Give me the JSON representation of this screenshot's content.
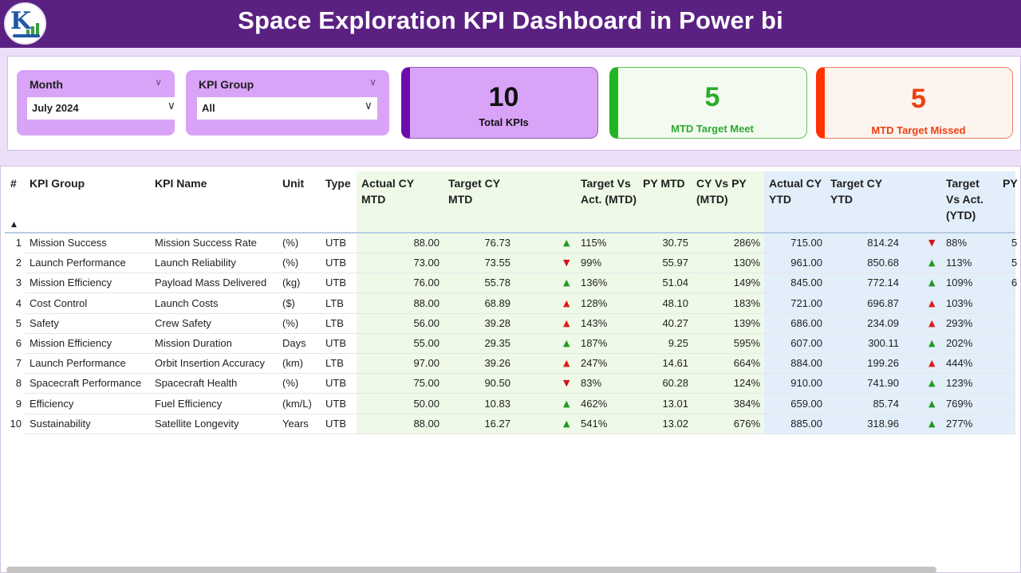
{
  "header": {
    "title": "Space Exploration KPI Dashboard in Power bi"
  },
  "slicers": {
    "month": {
      "label": "Month",
      "value": "July 2024"
    },
    "kpi_group": {
      "label": "KPI Group",
      "value": "All"
    }
  },
  "cards": {
    "total": {
      "value": "10",
      "caption": "Total KPIs"
    },
    "meet": {
      "value": "5",
      "caption": "MTD Target Meet"
    },
    "missed": {
      "value": "5",
      "caption": "MTD Target Missed"
    }
  },
  "colors": {
    "header": "#5b2182",
    "meet": "#22b422",
    "missed": "#ff3300",
    "mtd_bg": "#eef9e7",
    "ytd_bg": "#e2eefa"
  },
  "table": {
    "headers": {
      "num": "#",
      "group": "KPI Group",
      "name": "KPI Name",
      "unit": "Unit",
      "type": "Type",
      "actual_mtd": "Actual CY MTD",
      "target_mtd": "Target CY MTD",
      "tva_mtd": "Target Vs Act. (MTD)",
      "py_mtd": "PY MTD",
      "cy_vs_py": "CY Vs PY (MTD)",
      "actual_ytd": "Actual CY YTD",
      "target_ytd": "Target CY YTD",
      "tva_ytd": "Target Vs Act. (YTD)",
      "py": "PY"
    },
    "rows": [
      {
        "n": "1",
        "group": "Mission Success",
        "name": "Mission Success Rate",
        "unit": "(%)",
        "type": "UTB",
        "am": "88.00",
        "tm": "76.73",
        "mi": "up",
        "tvm": "115%",
        "pym": "30.75",
        "cvp": "286%",
        "ay": "715.00",
        "ty": "814.24",
        "yi": "down",
        "tvy": "88%",
        "py": "5"
      },
      {
        "n": "2",
        "group": "Launch Performance",
        "name": "Launch Reliability",
        "unit": "(%)",
        "type": "UTB",
        "am": "73.00",
        "tm": "73.55",
        "mi": "down",
        "tvm": "99%",
        "pym": "55.97",
        "cvp": "130%",
        "ay": "961.00",
        "ty": "850.68",
        "yi": "up",
        "tvy": "113%",
        "py": "5"
      },
      {
        "n": "3",
        "group": "Mission Efficiency",
        "name": "Payload Mass Delivered",
        "unit": "(kg)",
        "type": "UTB",
        "am": "76.00",
        "tm": "55.78",
        "mi": "up",
        "tvm": "136%",
        "pym": "51.04",
        "cvp": "149%",
        "ay": "845.00",
        "ty": "772.14",
        "yi": "up",
        "tvy": "109%",
        "py": "6"
      },
      {
        "n": "4",
        "group": "Cost Control",
        "name": "Launch Costs",
        "unit": "($)",
        "type": "LTB",
        "am": "88.00",
        "tm": "68.89",
        "mi": "upred",
        "tvm": "128%",
        "pym": "48.10",
        "cvp": "183%",
        "ay": "721.00",
        "ty": "696.87",
        "yi": "upred",
        "tvy": "103%",
        "py": ""
      },
      {
        "n": "5",
        "group": "Safety",
        "name": "Crew Safety",
        "unit": "(%)",
        "type": "LTB",
        "am": "56.00",
        "tm": "39.28",
        "mi": "upred",
        "tvm": "143%",
        "pym": "40.27",
        "cvp": "139%",
        "ay": "686.00",
        "ty": "234.09",
        "yi": "upred",
        "tvy": "293%",
        "py": ""
      },
      {
        "n": "6",
        "group": "Mission Efficiency",
        "name": "Mission Duration",
        "unit": "Days",
        "type": "UTB",
        "am": "55.00",
        "tm": "29.35",
        "mi": "up",
        "tvm": "187%",
        "pym": "9.25",
        "cvp": "595%",
        "ay": "607.00",
        "ty": "300.11",
        "yi": "up",
        "tvy": "202%",
        "py": ""
      },
      {
        "n": "7",
        "group": "Launch Performance",
        "name": "Orbit Insertion Accuracy",
        "unit": "(km)",
        "type": "LTB",
        "am": "97.00",
        "tm": "39.26",
        "mi": "upred",
        "tvm": "247%",
        "pym": "14.61",
        "cvp": "664%",
        "ay": "884.00",
        "ty": "199.26",
        "yi": "upred",
        "tvy": "444%",
        "py": ""
      },
      {
        "n": "8",
        "group": "Spacecraft Performance",
        "name": "Spacecraft Health",
        "unit": "(%)",
        "type": "UTB",
        "am": "75.00",
        "tm": "90.50",
        "mi": "down",
        "tvm": "83%",
        "pym": "60.28",
        "cvp": "124%",
        "ay": "910.00",
        "ty": "741.90",
        "yi": "up",
        "tvy": "123%",
        "py": ""
      },
      {
        "n": "9",
        "group": "Efficiency",
        "name": "Fuel Efficiency",
        "unit": "(km/L)",
        "type": "UTB",
        "am": "50.00",
        "tm": "10.83",
        "mi": "up",
        "tvm": "462%",
        "pym": "13.01",
        "cvp": "384%",
        "ay": "659.00",
        "ty": "85.74",
        "yi": "up",
        "tvy": "769%",
        "py": ""
      },
      {
        "n": "10",
        "group": "Sustainability",
        "name": "Satellite Longevity",
        "unit": "Years",
        "type": "UTB",
        "am": "88.00",
        "tm": "16.27",
        "mi": "up",
        "tvm": "541%",
        "pym": "13.02",
        "cvp": "676%",
        "ay": "885.00",
        "ty": "318.96",
        "yi": "up",
        "tvy": "277%",
        "py": ""
      }
    ]
  }
}
